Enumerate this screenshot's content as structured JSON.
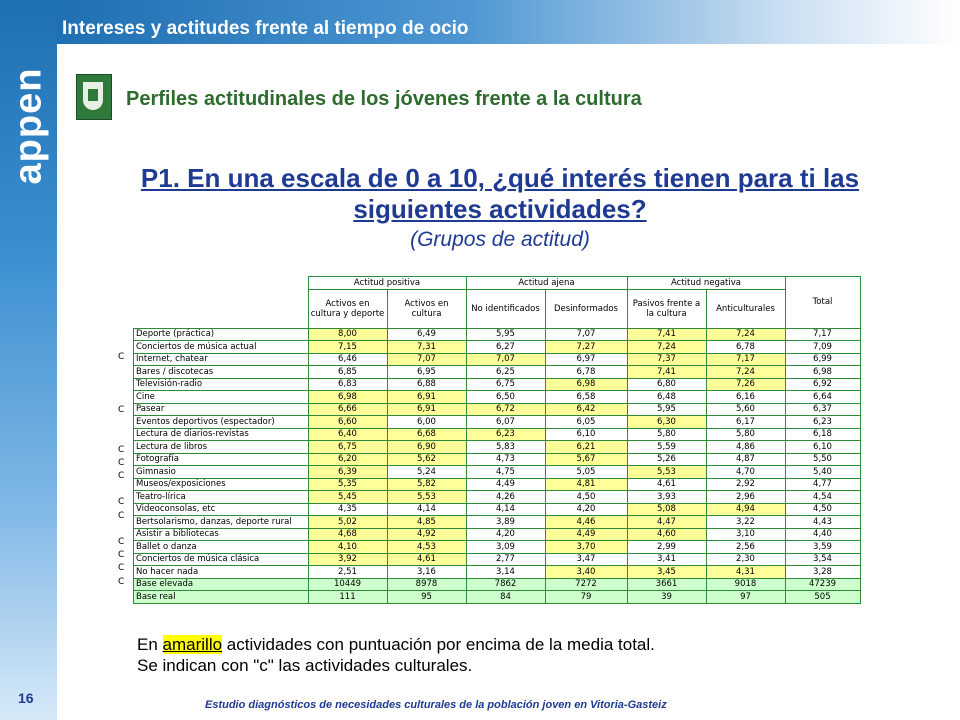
{
  "header": {
    "title": "Intereses y actitudes frente al tiempo de ocio",
    "logo_text": "appen",
    "subtitle": "Perfiles actitudinales de los jóvenes frente a la cultura"
  },
  "question": {
    "line1": "P1. En una escala de 0 a 10, ¿qué interés tienen para ti las",
    "line2": "siguientes actividades?",
    "groups_label": "(Grupos de actitud)"
  },
  "table": {
    "group_headers": [
      "Actitud positiva",
      "Actitud ajena",
      "Actitud negativa"
    ],
    "columns": [
      "Activos en cultura y deporte",
      "Activos en cultura",
      "No identificados",
      "Desinformados",
      "Pasivos frente a la cultura",
      "Anticulturales",
      "Total"
    ],
    "rows": [
      {
        "mark": "",
        "label": "Deporte (práctica)",
        "values": [
          "8,00",
          "6,49",
          "5,95",
          "7,07",
          "7,41",
          "7,24",
          "7,17"
        ],
        "hl": [
          1,
          0,
          0,
          0,
          1,
          1,
          0
        ]
      },
      {
        "mark": "C",
        "label": "Conciertos de música actual",
        "values": [
          "7,15",
          "7,31",
          "6,27",
          "7,27",
          "7,24",
          "6,78",
          "7,09"
        ],
        "hl": [
          1,
          1,
          0,
          1,
          1,
          0,
          0
        ]
      },
      {
        "mark": "",
        "label": "Internet, chatear",
        "values": [
          "6,46",
          "7,07",
          "7,07",
          "6,97",
          "7,37",
          "7,17",
          "6,99"
        ],
        "hl": [
          0,
          1,
          1,
          0,
          1,
          1,
          0
        ]
      },
      {
        "mark": "",
        "label": "Bares / discotecas",
        "values": [
          "6,85",
          "6,95",
          "6,25",
          "6,78",
          "7,41",
          "7,24",
          "6,98"
        ],
        "hl": [
          0,
          0,
          0,
          0,
          1,
          1,
          0
        ]
      },
      {
        "mark": "",
        "label": "Televisión-radio",
        "values": [
          "6,83",
          "6,88",
          "6,75",
          "6,98",
          "6,80",
          "7,26",
          "6,92"
        ],
        "hl": [
          0,
          0,
          0,
          1,
          0,
          1,
          0
        ]
      },
      {
        "mark": "C",
        "label": "Cine",
        "values": [
          "6,98",
          "6,91",
          "6,50",
          "6,58",
          "6,48",
          "6,16",
          "6,64"
        ],
        "hl": [
          1,
          1,
          0,
          0,
          0,
          0,
          0
        ]
      },
      {
        "mark": "",
        "label": "Pasear",
        "values": [
          "6,66",
          "6,91",
          "6,72",
          "6,42",
          "5,95",
          "5,60",
          "6,37"
        ],
        "hl": [
          1,
          1,
          1,
          1,
          0,
          0,
          0
        ]
      },
      {
        "mark": "",
        "label": "Eventos deportivos (espectador)",
        "values": [
          "6,60",
          "6,00",
          "6,07",
          "6,05",
          "6,30",
          "6,17",
          "6,23"
        ],
        "hl": [
          1,
          0,
          0,
          0,
          1,
          0,
          0
        ]
      },
      {
        "mark": "C",
        "label": "Lectura de diarios-revistas",
        "values": [
          "6,40",
          "6,68",
          "6,23",
          "6,10",
          "5,80",
          "5,80",
          "6,18"
        ],
        "hl": [
          1,
          1,
          1,
          0,
          0,
          0,
          0
        ]
      },
      {
        "mark": "C",
        "label": "Lectura de libros",
        "values": [
          "6,75",
          "6,90",
          "5,83",
          "6,21",
          "5,59",
          "4,86",
          "6,10"
        ],
        "hl": [
          1,
          1,
          0,
          1,
          0,
          0,
          0
        ]
      },
      {
        "mark": "C",
        "label": "Fotografía",
        "values": [
          "6,20",
          "5,62",
          "4,73",
          "5,67",
          "5,26",
          "4,87",
          "5,50"
        ],
        "hl": [
          1,
          1,
          0,
          1,
          0,
          0,
          0
        ]
      },
      {
        "mark": "",
        "label": "Gimnasio",
        "values": [
          "6,39",
          "5,24",
          "4,75",
          "5,05",
          "5,53",
          "4,70",
          "5,40"
        ],
        "hl": [
          1,
          0,
          0,
          0,
          1,
          0,
          0
        ]
      },
      {
        "mark": "C",
        "label": "Museos/exposiciones",
        "values": [
          "5,35",
          "5,82",
          "4,49",
          "4,81",
          "4,61",
          "2,92",
          "4,77"
        ],
        "hl": [
          1,
          1,
          0,
          1,
          0,
          0,
          0
        ]
      },
      {
        "mark": "C",
        "label": "Teatro-lírica",
        "values": [
          "5,45",
          "5,53",
          "4,26",
          "4,50",
          "3,93",
          "2,96",
          "4,54"
        ],
        "hl": [
          1,
          1,
          0,
          0,
          0,
          0,
          0
        ]
      },
      {
        "mark": "",
        "label": "Videoconsolas, etc",
        "values": [
          "4,35",
          "4,14",
          "4,14",
          "4,20",
          "5,08",
          "4,94",
          "4,50"
        ],
        "hl": [
          0,
          0,
          0,
          0,
          1,
          1,
          0
        ]
      },
      {
        "mark": "C",
        "label": "Bertsolarismo, danzas, deporte rural",
        "values": [
          "5,02",
          "4,85",
          "3,89",
          "4,46",
          "4,47",
          "3,22",
          "4,43"
        ],
        "hl": [
          1,
          1,
          0,
          1,
          1,
          0,
          0
        ]
      },
      {
        "mark": "C",
        "label": "Asistir a bibliotecas",
        "values": [
          "4,68",
          "4,92",
          "4,20",
          "4,49",
          "4,60",
          "3,10",
          "4,40"
        ],
        "hl": [
          1,
          1,
          0,
          1,
          1,
          0,
          0
        ]
      },
      {
        "mark": "C",
        "label": "Ballet o danza",
        "values": [
          "4,10",
          "4,53",
          "3,09",
          "3,70",
          "2,99",
          "2,56",
          "3,59"
        ],
        "hl": [
          1,
          1,
          0,
          1,
          0,
          0,
          0
        ]
      },
      {
        "mark": "C",
        "label": "Conciertos de música clásica",
        "values": [
          "3,92",
          "4,61",
          "2,77",
          "3,47",
          "3,41",
          "2,30",
          "3,54"
        ],
        "hl": [
          1,
          1,
          0,
          0,
          0,
          0,
          0
        ]
      },
      {
        "mark": "",
        "label": "No hacer nada",
        "values": [
          "2,51",
          "3,16",
          "3,14",
          "3,40",
          "3,45",
          "4,31",
          "3,28"
        ],
        "hl": [
          0,
          0,
          0,
          1,
          1,
          1,
          0
        ]
      }
    ],
    "base_rows": [
      {
        "label": "Base elevada",
        "values": [
          "10449",
          "8978",
          "7862",
          "7272",
          "3661",
          "9018",
          "47239"
        ]
      },
      {
        "label": "Base real",
        "values": [
          "111",
          "95",
          "84",
          "79",
          "39",
          "97",
          "505"
        ]
      }
    ]
  },
  "legend": {
    "line1_pre": "En ",
    "line1_highlight": "amarillo",
    "line1_post": " actividades con puntuación por encima de la media total.",
    "line2": "Se indican con \"c\" las actividades culturales."
  },
  "footer": {
    "page_number": "16",
    "text": "Estudio diagnósticos de necesidades culturales de la población joven en Vitoria-Gasteiz"
  }
}
